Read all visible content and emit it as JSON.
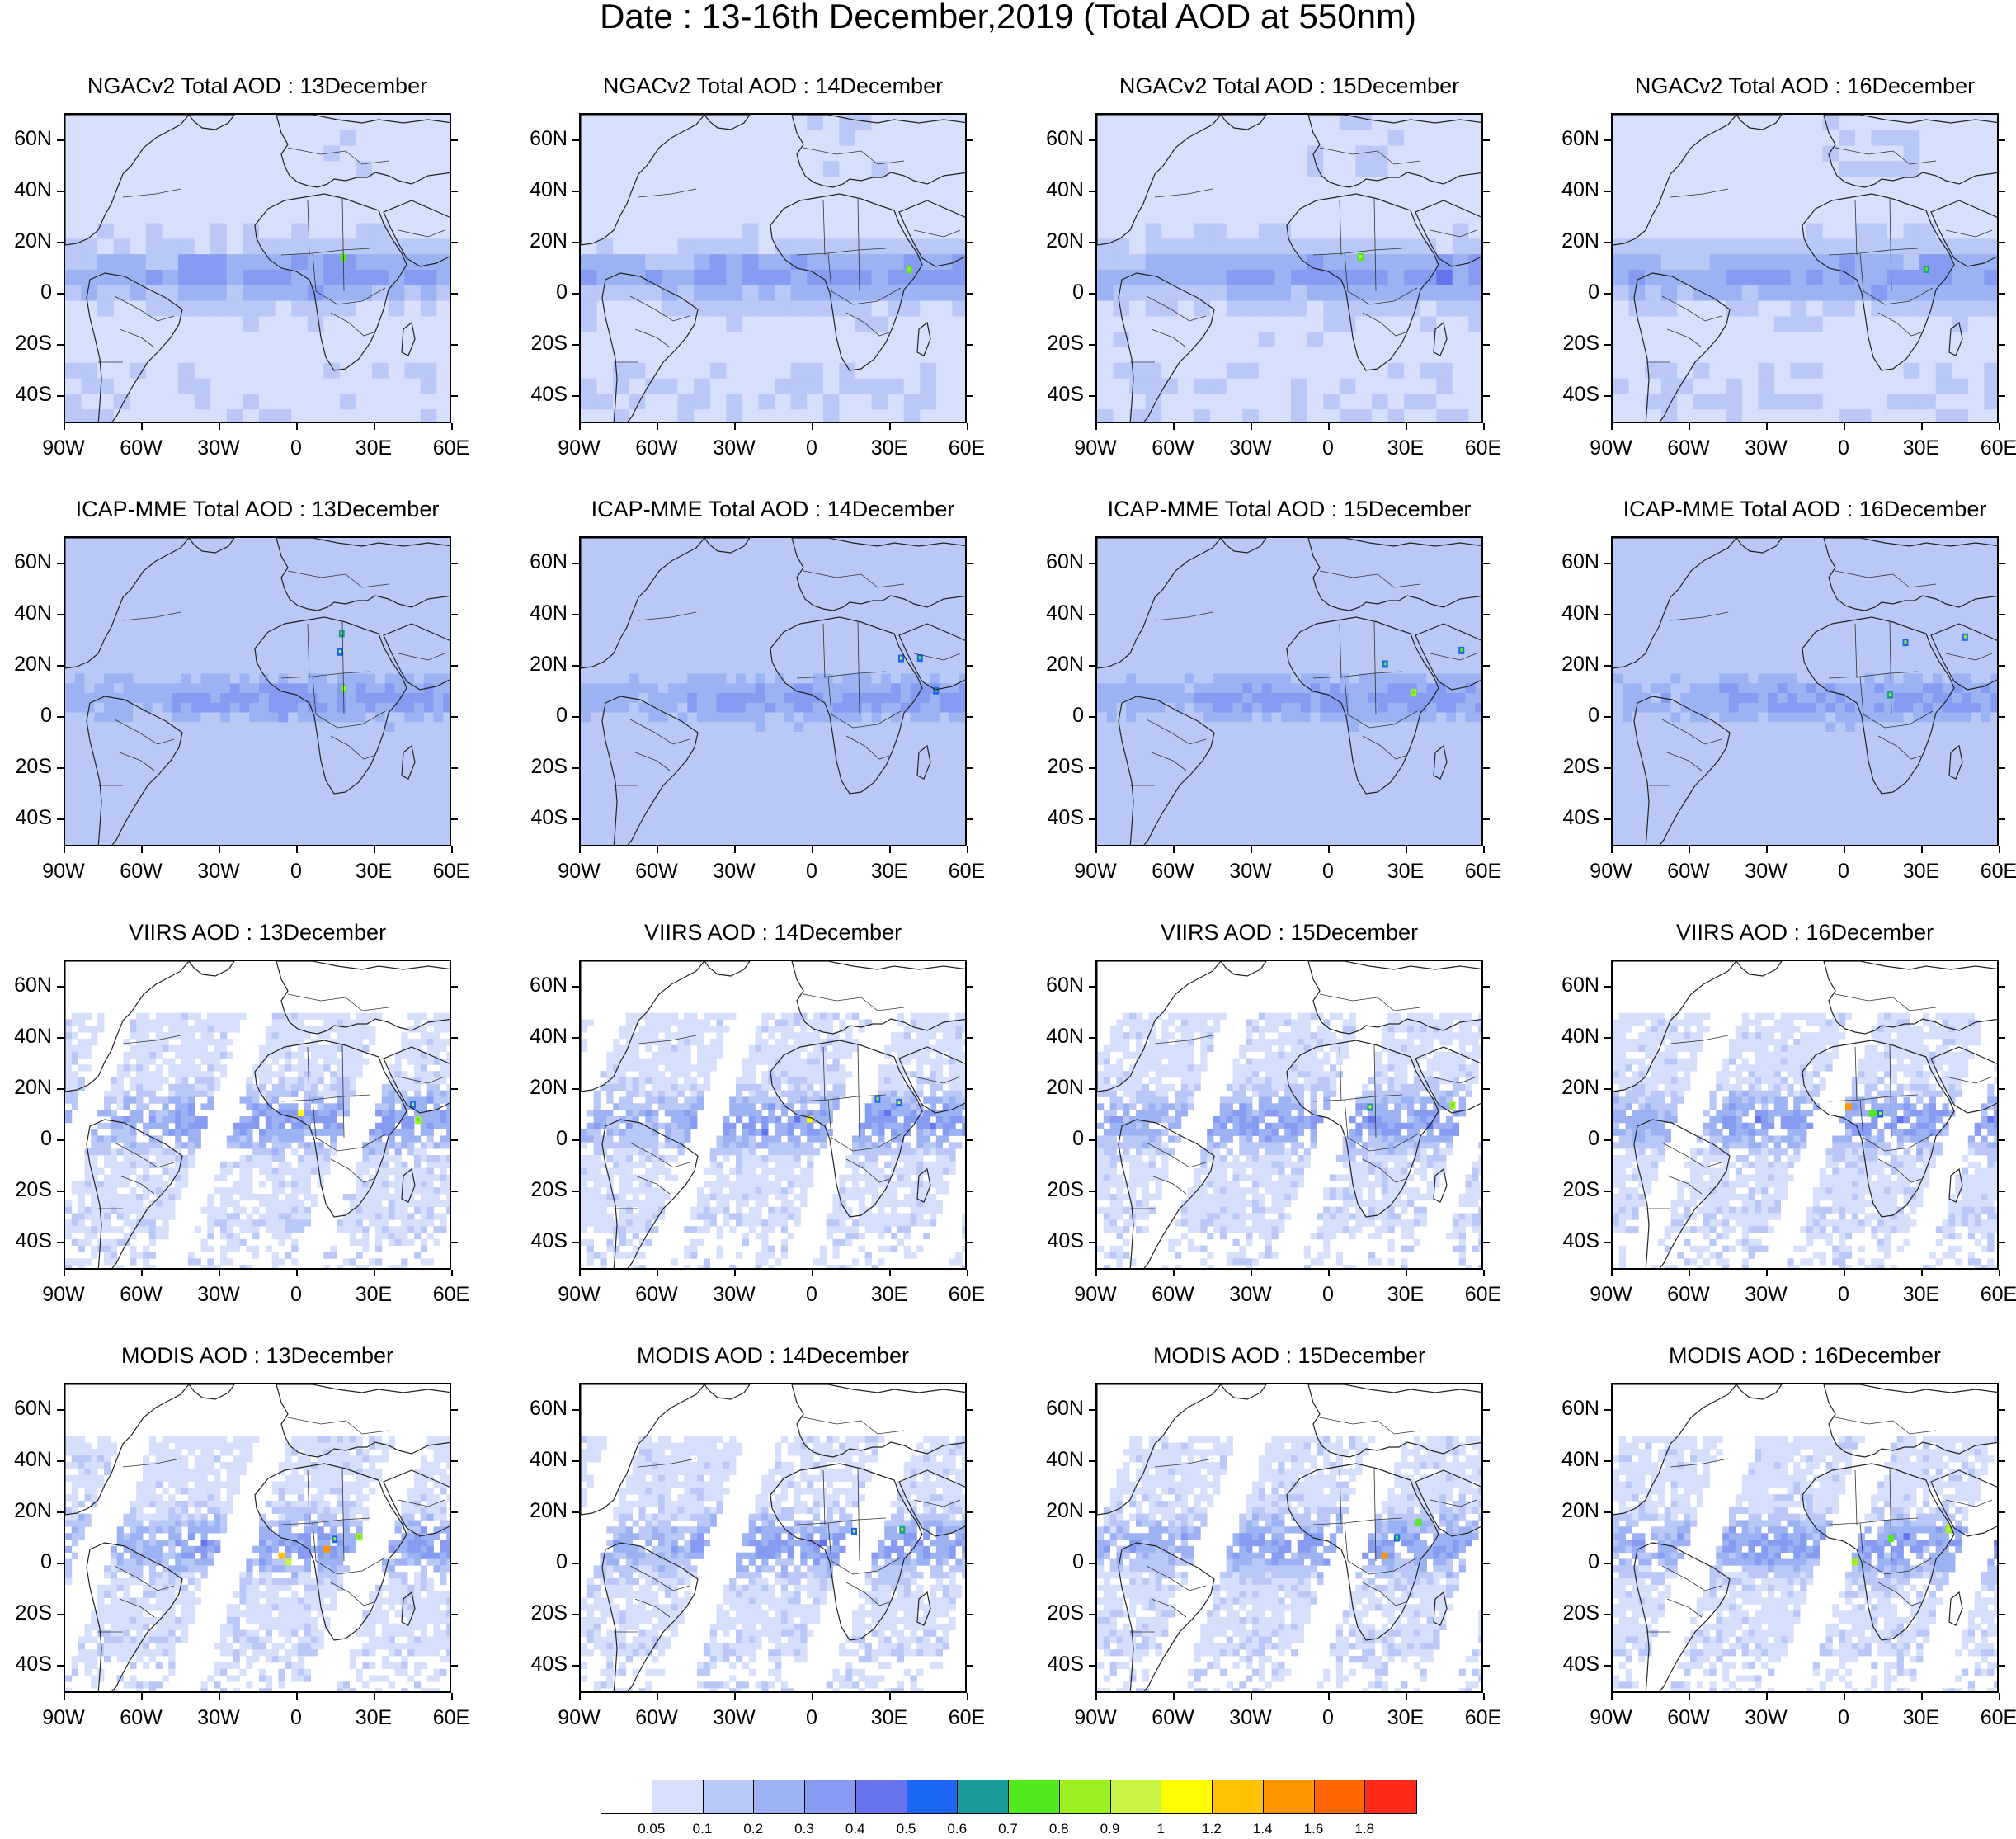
{
  "title": "Date : 13-16th December,2019 (Total AOD at 550nm)",
  "lat_labels": [
    "60N",
    "40N",
    "20N",
    "0",
    "20S",
    "40S"
  ],
  "lon_labels": [
    "90W",
    "60W",
    "30W",
    "0",
    "30E",
    "60E"
  ],
  "rows": [
    {
      "model": "NGACv2",
      "style": "ngac",
      "titles": [
        "NGACv2 Total AOD : 13December",
        "NGACv2 Total AOD : 14December",
        "NGACv2 Total AOD : 15December",
        "NGACv2 Total AOD : 16December"
      ]
    },
    {
      "model": "ICAP-MME",
      "style": "icap",
      "titles": [
        "ICAP-MME Total AOD : 13December",
        "ICAP-MME Total AOD : 14December",
        "ICAP-MME Total AOD : 15December",
        "ICAP-MME Total AOD : 16December"
      ]
    },
    {
      "model": "VIIRS",
      "style": "viirs",
      "titles": [
        "VIIRS AOD : 13December",
        "VIIRS AOD : 14December",
        "VIIRS AOD : 15December",
        "VIIRS AOD : 16December"
      ]
    },
    {
      "model": "MODIS",
      "style": "modis",
      "titles": [
        "MODIS AOD : 13December",
        "MODIS AOD : 14December",
        "MODIS AOD : 15December",
        "MODIS AOD : 16December"
      ]
    }
  ],
  "colorbar": {
    "labels": [
      "0.05",
      "0.1",
      "0.2",
      "0.3",
      "0.4",
      "0.5",
      "0.6",
      "0.7",
      "0.8",
      "0.9",
      "1",
      "1.2",
      "1.4",
      "1.6",
      "1.8"
    ],
    "colors": [
      "#ffffff",
      "#d6dffb",
      "#b9c8f6",
      "#9cb2f3",
      "#869bf1",
      "#6673ed",
      "#1b66f2",
      "#1a9a99",
      "#50ea1f",
      "#9df01f",
      "#c7f444",
      "#fffb00",
      "#ffc200",
      "#ff9500",
      "#ff6600",
      "#ff2a19"
    ]
  }
}
